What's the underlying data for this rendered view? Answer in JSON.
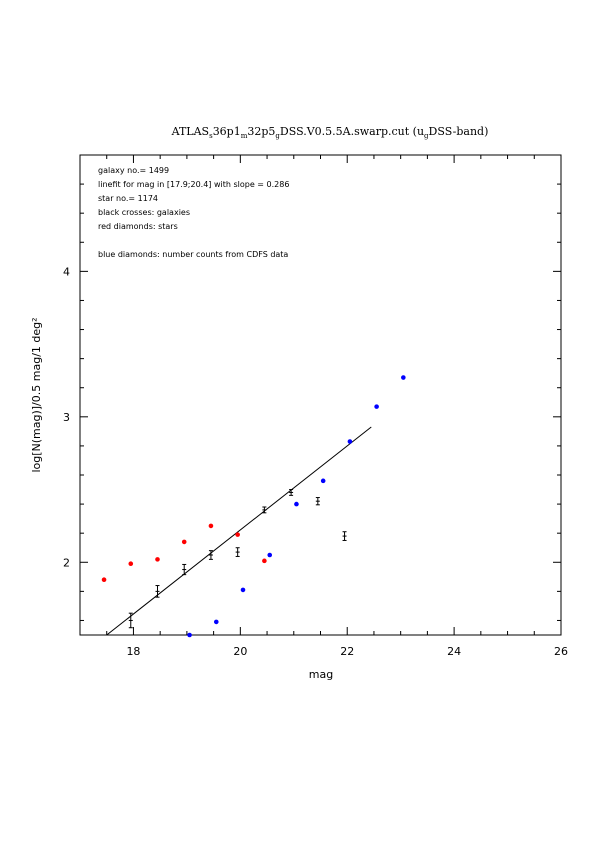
{
  "chart_data": {
    "type": "scatter",
    "title": "ATLAS_s36p1_m32p5_gDSS.V0.5.5A.swarp.cut (u_gDSS-band)",
    "title_parts": {
      "a": "ATLAS",
      "a_sub": "s",
      "b": "36p1",
      "b_sub": "m",
      "c": "32p5",
      "c_sub": "g",
      "d": "DSS.V0.5.5A.swarp.cut (u",
      "d_sub": "g",
      "e": "DSS-band)"
    },
    "xlabel": "mag",
    "ylabel": "log[N(mag)]/0.5 mag/1 deg²",
    "xlim": [
      17,
      26
    ],
    "ylim": [
      1.5,
      4.8
    ],
    "x_ticks": [
      18,
      20,
      22,
      24,
      26
    ],
    "y_ticks": [
      2,
      3,
      4
    ],
    "grid": false,
    "annotations": [
      "galaxy no.= 1499",
      "linefit for mag in [17.9;20.4] with slope = 0.286",
      "star no.= 1174",
      "black crosses: galaxies",
      "red diamonds: stars",
      "blue diamonds: number counts from CDFS data"
    ],
    "series": [
      {
        "marker": "cross-errorbar",
        "color": "#000000",
        "points": [
          {
            "x": 17.95,
            "y": 1.6,
            "err": 0.05
          },
          {
            "x": 18.45,
            "y": 1.8,
            "err": 0.04
          },
          {
            "x": 18.95,
            "y": 1.95,
            "err": 0.035
          },
          {
            "x": 19.45,
            "y": 2.05,
            "err": 0.03
          },
          {
            "x": 19.95,
            "y": 2.07,
            "err": 0.03
          },
          {
            "x": 20.45,
            "y": 2.36,
            "err": 0.02
          },
          {
            "x": 20.95,
            "y": 2.48,
            "err": 0.02
          },
          {
            "x": 21.45,
            "y": 2.42,
            "err": 0.025
          },
          {
            "x": 21.95,
            "y": 2.18,
            "err": 0.03
          }
        ]
      },
      {
        "marker": "dot",
        "color": "#ff0000",
        "points": [
          {
            "x": 17.45,
            "y": 1.88
          },
          {
            "x": 17.95,
            "y": 1.99
          },
          {
            "x": 18.45,
            "y": 2.02
          },
          {
            "x": 18.95,
            "y": 2.14
          },
          {
            "x": 19.45,
            "y": 2.25
          },
          {
            "x": 19.95,
            "y": 2.19
          },
          {
            "x": 20.45,
            "y": 2.01
          }
        ]
      },
      {
        "marker": "dot",
        "color": "#0000ff",
        "points": [
          {
            "x": 19.05,
            "y": 1.5
          },
          {
            "x": 19.55,
            "y": 1.59
          },
          {
            "x": 20.05,
            "y": 1.81
          },
          {
            "x": 20.55,
            "y": 2.05
          },
          {
            "x": 21.05,
            "y": 2.4
          },
          {
            "x": 21.55,
            "y": 2.56
          },
          {
            "x": 22.05,
            "y": 2.83
          },
          {
            "x": 22.55,
            "y": 3.07
          },
          {
            "x": 23.05,
            "y": 3.27
          }
        ]
      }
    ],
    "fit_line": {
      "x": [
        17.5,
        22.45
      ],
      "y": [
        1.5,
        2.93
      ],
      "color": "#000000"
    }
  }
}
